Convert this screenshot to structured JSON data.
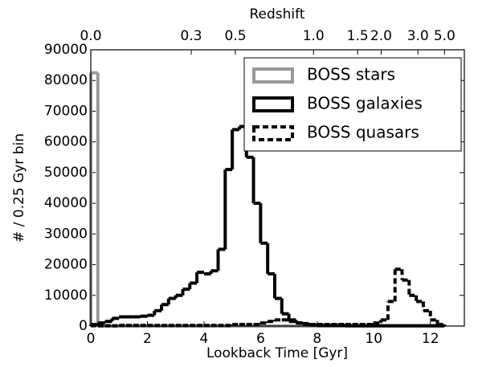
{
  "chart_data": {
    "type": "histogram",
    "xlabel": "Lookback Time [Gyr]",
    "ylabel": "# / 0.25 Gyr bin",
    "x2label": "Redshift",
    "bins": [
      0,
      0.25,
      0.5,
      0.75,
      1,
      1.25,
      1.5,
      1.75,
      2,
      2.25,
      2.5,
      2.75,
      3,
      3.25,
      3.5,
      3.75,
      4,
      4.25,
      4.5,
      4.75,
      5,
      5.25,
      5.5,
      5.75,
      6,
      6.25,
      6.5,
      6.75,
      7,
      7.25,
      7.5,
      7.75,
      8,
      8.25,
      8.5,
      8.75,
      9,
      9.25,
      9.5,
      9.75,
      10,
      10.25,
      10.5,
      10.75,
      11,
      11.25,
      11.5,
      11.75,
      12,
      12.25,
      12.5
    ],
    "series": [
      {
        "name": "BOSS stars",
        "color": "#999999",
        "linestyle": "solid",
        "values": [
          82500,
          0,
          0,
          0,
          0,
          0,
          0,
          0,
          0,
          0,
          0,
          0,
          0,
          0,
          0,
          0,
          0,
          0,
          0,
          0,
          0,
          0,
          0,
          0,
          0,
          0,
          0,
          0,
          0,
          0,
          0,
          0,
          0,
          0,
          0,
          0,
          0,
          0,
          0,
          0,
          0,
          0,
          0,
          0,
          0,
          0,
          0,
          0,
          0,
          0
        ]
      },
      {
        "name": "BOSS galaxies",
        "color": "#000000",
        "linestyle": "solid",
        "values": [
          500,
          1000,
          1500,
          2500,
          3000,
          3000,
          3000,
          3200,
          3500,
          5000,
          7000,
          9000,
          10000,
          12000,
          14000,
          17500,
          17000,
          18000,
          25000,
          51000,
          64000,
          65000,
          55000,
          40000,
          27000,
          17000,
          9000,
          4000,
          2000,
          1000,
          500,
          300,
          200,
          200,
          200,
          200,
          100,
          100,
          100,
          100,
          100,
          100,
          100,
          100,
          100,
          100,
          100,
          100,
          100,
          100
        ]
      },
      {
        "name": "BOSS quasars",
        "color": "#000000",
        "linestyle": "dashed",
        "values": [
          100,
          100,
          100,
          100,
          200,
          200,
          200,
          200,
          200,
          200,
          200,
          200,
          200,
          200,
          200,
          200,
          200,
          200,
          200,
          200,
          500,
          500,
          500,
          500,
          1000,
          1500,
          2000,
          2000,
          1500,
          1000,
          800,
          500,
          500,
          500,
          500,
          500,
          500,
          500,
          500,
          500,
          1000,
          2000,
          8000,
          18500,
          15000,
          10000,
          8000,
          5000,
          2000,
          500
        ]
      }
    ],
    "xlim": [
      0,
      13.2
    ],
    "ylim": [
      0,
      90000
    ],
    "xticks": [
      0,
      2,
      4,
      6,
      8,
      10,
      12
    ],
    "yticks": [
      0,
      10000,
      20000,
      30000,
      40000,
      50000,
      60000,
      70000,
      80000,
      90000
    ],
    "x2ticks": [
      {
        "value": 0,
        "label": "0.0"
      },
      {
        "value": 3.55,
        "label": "0.3"
      },
      {
        "value": 5.11,
        "label": "0.5"
      },
      {
        "value": 7.87,
        "label": "1.0"
      },
      {
        "value": 9.43,
        "label": "1.5"
      },
      {
        "value": 10.26,
        "label": "2.0"
      },
      {
        "value": 11.56,
        "label": "3.0"
      },
      {
        "value": 12.5,
        "label": "5.0"
      }
    ],
    "legend": "upper right"
  }
}
